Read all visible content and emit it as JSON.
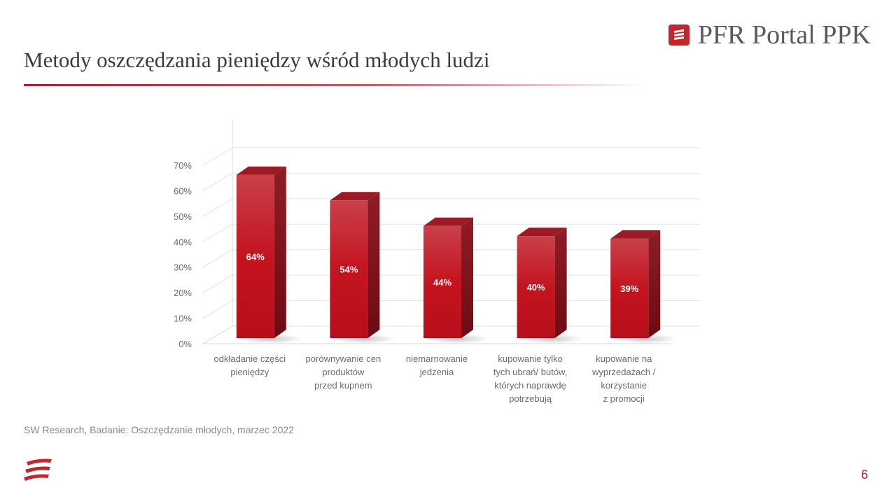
{
  "slide": {
    "title": "Metody oszczędzania pieniędzy wśród młodych ludzi",
    "brand": "PFR Portal PPK",
    "source": "SW Research, Badanie: Oszczędzanie młodych, marzec 2022",
    "page_number": "6"
  },
  "colors": {
    "accent": "#b01f2e",
    "bar_front": "#c4141f",
    "bar_side": "#7e0e16",
    "bar_top": "#9c1a24"
  },
  "icons": {
    "brand": "pfr-logo-icon",
    "footer": "pfr-logo-icon"
  },
  "chart_data": {
    "type": "bar",
    "title": "",
    "xlabel": "",
    "ylabel": "",
    "ylim": [
      0,
      70
    ],
    "yticks": [
      "0%",
      "10%",
      "20%",
      "30%",
      "40%",
      "50%",
      "60%",
      "70%"
    ],
    "grid": true,
    "categories": [
      [
        "odkładanie części",
        "pieniędzy"
      ],
      [
        "porównywanie cen",
        "produktów",
        "przed kupnem"
      ],
      [
        "niemarnowanie",
        "jedzenia"
      ],
      [
        "kupowanie tylko",
        "tych ubrań/ butów,",
        "których naprawdę",
        "potrzebują"
      ],
      [
        "kupowanie na",
        "wyprzedażach /",
        "korzystanie",
        "z promocji"
      ]
    ],
    "values": [
      64,
      54,
      44,
      40,
      39
    ],
    "data_labels": [
      "64%",
      "54%",
      "44%",
      "40%",
      "39%"
    ]
  }
}
